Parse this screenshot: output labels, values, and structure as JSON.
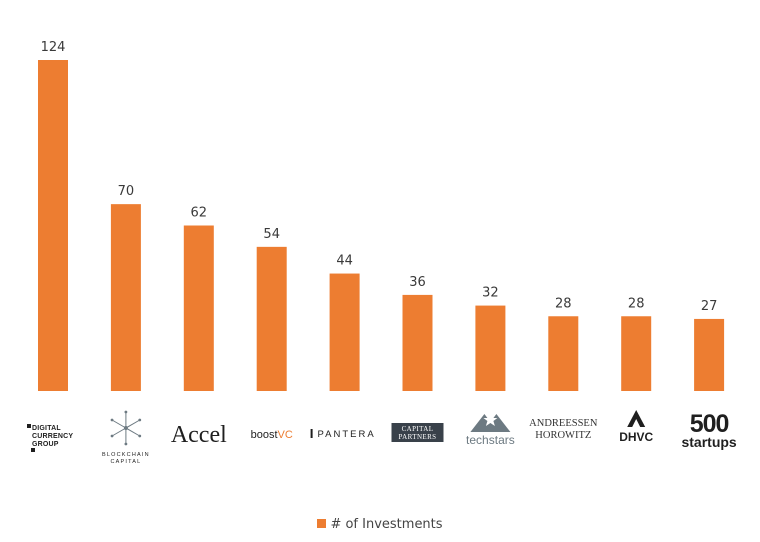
{
  "colors": {
    "bar": "#ED7D31",
    "text": "#3a3a3a",
    "logo": "#1f1f1f",
    "logo_gray": "#6d7a82"
  },
  "chart_data": {
    "type": "bar",
    "categories": [
      "Digital Currency Group",
      "Blockchain Capital",
      "Accel",
      "boostVC",
      "Pantera",
      "Capital Partners",
      "techstars",
      "Andreessen Horowitz",
      "DHVC",
      "500 startups"
    ],
    "series": [
      {
        "name": "# of Investments",
        "values": [
          124,
          70,
          62,
          54,
          44,
          36,
          32,
          28,
          28,
          27
        ]
      }
    ],
    "ylim": [
      0,
      124
    ],
    "grid": false,
    "legend": "bottom",
    "data_labels": true,
    "logos": [
      {
        "icon": "digital-currency-group-logo",
        "lines": [
          "DIGITAL",
          "CURRENCY",
          "GROUP"
        ]
      },
      {
        "icon": "blockchain-capital-logo",
        "lines": [
          "BLOCKCHAIN",
          "CAPITAL"
        ]
      },
      {
        "icon": "accel-logo",
        "lines": [
          "Accel"
        ]
      },
      {
        "icon": "boostvc-logo",
        "lines": [
          "boost",
          "VC"
        ]
      },
      {
        "icon": "pantera-logo",
        "lines": [
          "PANTERA"
        ]
      },
      {
        "icon": "capital-partners-logo",
        "lines": [
          "CAPITAL",
          "PARTNERS"
        ]
      },
      {
        "icon": "techstars-logo",
        "lines": [
          "techstars"
        ]
      },
      {
        "icon": "andreessen-horowitz-logo",
        "lines": [
          "ANDREESSEN",
          "HOROWITZ"
        ]
      },
      {
        "icon": "dhvc-logo",
        "lines": [
          "DHVC"
        ]
      },
      {
        "icon": "500-startups-logo",
        "lines": [
          "500",
          "startups"
        ]
      }
    ]
  }
}
